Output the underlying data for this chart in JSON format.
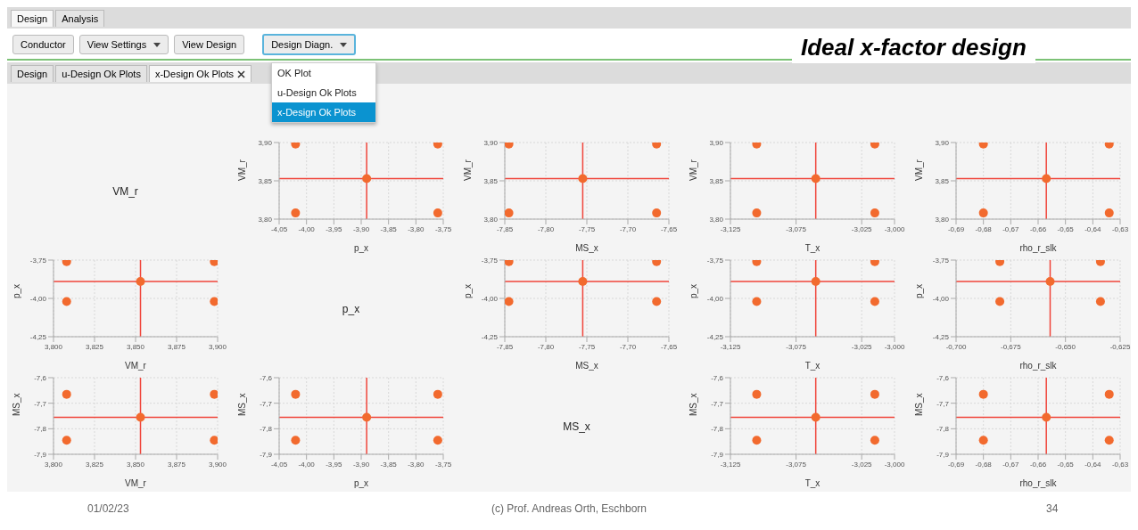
{
  "chart_data": [
    {
      "type": "other",
      "annotations": [
        "Design",
        "Analysis",
        "Conductor",
        "View Settings",
        "View Design",
        "Design Diagn.",
        "Design",
        "u-Design Ok Plots",
        "x-Design Ok Plots",
        "OK Plot",
        "u-Design Ok Plots",
        "x-Design Ok Plots",
        "Ideal x-factor design",
        "VM_r",
        "p_x",
        "MS_x",
        "01/02/23",
        "(c) Prof. Andreas Orth, Eschborn",
        "34"
      ]
    },
    {
      "type": "scatter",
      "xlabel": "p_x",
      "ylabel": "VM_r",
      "color": "#f26a2e",
      "marker": "circle",
      "grid": true,
      "x": [
        -4.02,
        -4.02,
        -3.76,
        -3.76,
        -3.89
      ],
      "values": [
        3.808,
        3.898,
        3.808,
        3.898,
        3.853
      ],
      "xlim": [
        -4.05,
        -3.75
      ],
      "xticks": [
        {
          "value": -4.05,
          "label": "-4,05"
        },
        {
          "value": -4.0,
          "label": "-4,00"
        },
        {
          "value": -3.95,
          "label": "-3,95"
        },
        {
          "value": -3.9,
          "label": "-3,90"
        },
        {
          "value": -3.85,
          "label": "-3,85"
        },
        {
          "value": -3.8,
          "label": "-3,80"
        },
        {
          "value": -3.75,
          "label": "-3,75"
        }
      ],
      "ylim": [
        3.8,
        3.9
      ],
      "yticks": [
        {
          "value": 3.8,
          "label": "3,80"
        },
        {
          "value": 3.85,
          "label": "3,85"
        },
        {
          "value": 3.9,
          "label": "3,90"
        }
      ],
      "ref_lines": [
        {
          "axis": "x",
          "value": -3.89,
          "color": "#f0443a"
        },
        {
          "axis": "y",
          "value": 3.853,
          "color": "#f0443a"
        }
      ]
    },
    {
      "type": "scatter",
      "xlabel": "MS_x",
      "ylabel": "VM_r",
      "color": "#f26a2e",
      "marker": "circle",
      "grid": true,
      "x": [
        -7.845,
        -7.845,
        -7.665,
        -7.665,
        -7.755
      ],
      "values": [
        3.808,
        3.898,
        3.808,
        3.898,
        3.853
      ],
      "xlim": [
        -7.85,
        -7.65
      ],
      "xticks": [
        {
          "value": -7.85,
          "label": "-7,85"
        },
        {
          "value": -7.8,
          "label": "-7,80"
        },
        {
          "value": -7.75,
          "label": "-7,75"
        },
        {
          "value": -7.7,
          "label": "-7,70"
        },
        {
          "value": -7.65,
          "label": "-7,65"
        }
      ],
      "ylim": [
        3.8,
        3.9
      ],
      "yticks": [
        {
          "value": 3.8,
          "label": "3,80"
        },
        {
          "value": 3.85,
          "label": "3,85"
        },
        {
          "value": 3.9,
          "label": "3,90"
        }
      ],
      "ref_lines": [
        {
          "axis": "x",
          "value": -7.755,
          "color": "#f0443a"
        },
        {
          "axis": "y",
          "value": 3.853,
          "color": "#f0443a"
        }
      ]
    },
    {
      "type": "scatter",
      "xlabel": "T_x",
      "ylabel": "VM_r",
      "color": "#f26a2e",
      "marker": "circle",
      "grid": true,
      "x": [
        -3.105,
        -3.105,
        -3.015,
        -3.015,
        -3.06
      ],
      "values": [
        3.808,
        3.898,
        3.808,
        3.898,
        3.853
      ],
      "xlim": [
        -3.125,
        -3.0
      ],
      "xticks": [
        {
          "value": -3.125,
          "label": "-3,125"
        },
        {
          "value": -3.075,
          "label": "-3,075"
        },
        {
          "value": -3.025,
          "label": "-3,025"
        },
        {
          "value": -3.0,
          "label": "-3,000"
        }
      ],
      "ylim": [
        3.8,
        3.9
      ],
      "yticks": [
        {
          "value": 3.8,
          "label": "3,80"
        },
        {
          "value": 3.85,
          "label": "3,85"
        },
        {
          "value": 3.9,
          "label": "3,90"
        }
      ],
      "ref_lines": [
        {
          "axis": "x",
          "value": -3.06,
          "color": "#f0443a"
        },
        {
          "axis": "y",
          "value": 3.853,
          "color": "#f0443a"
        }
      ]
    },
    {
      "type": "scatter",
      "xlabel": "rho_r_slk",
      "ylabel": "VM_r",
      "color": "#f26a2e",
      "marker": "circle",
      "grid": true,
      "x": [
        -0.68,
        -0.68,
        -0.634,
        -0.634,
        -0.657
      ],
      "values": [
        3.808,
        3.898,
        3.808,
        3.898,
        3.853
      ],
      "xlim": [
        -0.69,
        -0.63
      ],
      "xticks": [
        {
          "value": -0.69,
          "label": "-0,69"
        },
        {
          "value": -0.68,
          "label": "-0,68"
        },
        {
          "value": -0.67,
          "label": "-0,67"
        },
        {
          "value": -0.66,
          "label": "-0,66"
        },
        {
          "value": -0.65,
          "label": "-0,65"
        },
        {
          "value": -0.64,
          "label": "-0,64"
        },
        {
          "value": -0.63,
          "label": "-0,63"
        }
      ],
      "ylim": [
        3.8,
        3.9
      ],
      "yticks": [
        {
          "value": 3.8,
          "label": "3,80"
        },
        {
          "value": 3.85,
          "label": "3,85"
        },
        {
          "value": 3.9,
          "label": "3,90"
        }
      ],
      "ref_lines": [
        {
          "axis": "x",
          "value": -0.657,
          "color": "#f0443a"
        },
        {
          "axis": "y",
          "value": 3.853,
          "color": "#f0443a"
        }
      ]
    },
    {
      "type": "scatter",
      "xlabel": "VM_r",
      "ylabel": "p_x",
      "color": "#f26a2e",
      "marker": "circle",
      "grid": true,
      "x": [
        3.808,
        3.808,
        3.898,
        3.898,
        3.853
      ],
      "values": [
        -4.02,
        -3.76,
        -4.02,
        -3.76,
        -3.89
      ],
      "xlim": [
        3.8,
        3.9
      ],
      "xticks": [
        {
          "value": 3.8,
          "label": "3,800"
        },
        {
          "value": 3.825,
          "label": "3,825"
        },
        {
          "value": 3.85,
          "label": "3,850"
        },
        {
          "value": 3.875,
          "label": "3,875"
        },
        {
          "value": 3.9,
          "label": "3,900"
        }
      ],
      "ylim": [
        -4.25,
        -3.75
      ],
      "yticks": [
        {
          "value": -4.25,
          "label": "-4,25"
        },
        {
          "value": -4.0,
          "label": "-4,00"
        },
        {
          "value": -3.75,
          "label": "-3,75"
        }
      ],
      "ref_lines": [
        {
          "axis": "x",
          "value": 3.853,
          "color": "#f0443a"
        },
        {
          "axis": "y",
          "value": -3.89,
          "color": "#f0443a"
        }
      ]
    },
    {
      "type": "scatter",
      "xlabel": "MS_x",
      "ylabel": "p_x",
      "color": "#f26a2e",
      "marker": "circle",
      "grid": true,
      "x": [
        -7.845,
        -7.845,
        -7.665,
        -7.665,
        -7.755
      ],
      "values": [
        -4.02,
        -3.76,
        -4.02,
        -3.76,
        -3.89
      ],
      "xlim": [
        -7.85,
        -7.65
      ],
      "xticks": [
        {
          "value": -7.85,
          "label": "-7,85"
        },
        {
          "value": -7.8,
          "label": "-7,80"
        },
        {
          "value": -7.75,
          "label": "-7,75"
        },
        {
          "value": -7.7,
          "label": "-7,70"
        },
        {
          "value": -7.65,
          "label": "-7,65"
        }
      ],
      "ylim": [
        -4.25,
        -3.75
      ],
      "yticks": [
        {
          "value": -4.25,
          "label": "-4,25"
        },
        {
          "value": -4.0,
          "label": "-4,00"
        },
        {
          "value": -3.75,
          "label": "-3,75"
        }
      ],
      "ref_lines": [
        {
          "axis": "x",
          "value": -7.755,
          "color": "#f0443a"
        },
        {
          "axis": "y",
          "value": -3.89,
          "color": "#f0443a"
        }
      ]
    },
    {
      "type": "scatter",
      "xlabel": "T_x",
      "ylabel": "p_x",
      "color": "#f26a2e",
      "marker": "circle",
      "grid": true,
      "x": [
        -3.105,
        -3.105,
        -3.015,
        -3.015,
        -3.06
      ],
      "values": [
        -4.02,
        -3.76,
        -4.02,
        -3.76,
        -3.89
      ],
      "xlim": [
        -3.125,
        -3.0
      ],
      "xticks": [
        {
          "value": -3.125,
          "label": "-3,125"
        },
        {
          "value": -3.075,
          "label": "-3,075"
        },
        {
          "value": -3.025,
          "label": "-3,025"
        },
        {
          "value": -3.0,
          "label": "-3,000"
        }
      ],
      "ylim": [
        -4.25,
        -3.75
      ],
      "yticks": [
        {
          "value": -4.25,
          "label": "-4,25"
        },
        {
          "value": -4.0,
          "label": "-4,00"
        },
        {
          "value": -3.75,
          "label": "-3,75"
        }
      ],
      "ref_lines": [
        {
          "axis": "x",
          "value": -3.06,
          "color": "#f0443a"
        },
        {
          "axis": "y",
          "value": -3.89,
          "color": "#f0443a"
        }
      ]
    },
    {
      "type": "scatter",
      "xlabel": "rho_r_slk",
      "ylabel": "p_x",
      "color": "#f26a2e",
      "marker": "circle",
      "grid": true,
      "x": [
        -0.68,
        -0.68,
        -0.634,
        -0.634,
        -0.657
      ],
      "values": [
        -4.02,
        -3.76,
        -4.02,
        -3.76,
        -3.89
      ],
      "xlim": [
        -0.7,
        -0.625
      ],
      "xticks": [
        {
          "value": -0.7,
          "label": "-0,700"
        },
        {
          "value": -0.675,
          "label": "-0,675"
        },
        {
          "value": -0.65,
          "label": "-0,650"
        },
        {
          "value": -0.625,
          "label": "-0,625"
        }
      ],
      "ylim": [
        -4.25,
        -3.75
      ],
      "yticks": [
        {
          "value": -4.25,
          "label": "-4,25"
        },
        {
          "value": -4.0,
          "label": "-4,00"
        },
        {
          "value": -3.75,
          "label": "-3,75"
        }
      ],
      "ref_lines": [
        {
          "axis": "x",
          "value": -0.657,
          "color": "#f0443a"
        },
        {
          "axis": "y",
          "value": -3.89,
          "color": "#f0443a"
        }
      ]
    },
    {
      "type": "scatter",
      "xlabel": "VM_r",
      "ylabel": "MS_x",
      "color": "#f26a2e",
      "marker": "circle",
      "grid": true,
      "x": [
        3.808,
        3.808,
        3.898,
        3.898,
        3.853
      ],
      "values": [
        -7.845,
        -7.665,
        -7.845,
        -7.665,
        -7.755
      ],
      "xlim": [
        3.8,
        3.9
      ],
      "xticks": [
        {
          "value": 3.8,
          "label": "3,800"
        },
        {
          "value": 3.825,
          "label": "3,825"
        },
        {
          "value": 3.85,
          "label": "3,850"
        },
        {
          "value": 3.875,
          "label": "3,875"
        },
        {
          "value": 3.9,
          "label": "3,900"
        }
      ],
      "ylim": [
        -7.9,
        -7.6
      ],
      "yticks": [
        {
          "value": -7.9,
          "label": "-7,9"
        },
        {
          "value": -7.8,
          "label": "-7,8"
        },
        {
          "value": -7.7,
          "label": "-7,7"
        },
        {
          "value": -7.6,
          "label": "-7,6"
        }
      ],
      "ref_lines": [
        {
          "axis": "x",
          "value": 3.853,
          "color": "#f0443a"
        },
        {
          "axis": "y",
          "value": -7.755,
          "color": "#f0443a"
        }
      ]
    },
    {
      "type": "scatter",
      "xlabel": "p_x",
      "ylabel": "MS_x",
      "color": "#f26a2e",
      "marker": "circle",
      "grid": true,
      "x": [
        -4.02,
        -4.02,
        -3.76,
        -3.76,
        -3.89
      ],
      "values": [
        -7.845,
        -7.665,
        -7.845,
        -7.665,
        -7.755
      ],
      "xlim": [
        -4.05,
        -3.75
      ],
      "xticks": [
        {
          "value": -4.05,
          "label": "-4,05"
        },
        {
          "value": -4.0,
          "label": "-4,00"
        },
        {
          "value": -3.95,
          "label": "-3,95"
        },
        {
          "value": -3.9,
          "label": "-3,90"
        },
        {
          "value": -3.85,
          "label": "-3,85"
        },
        {
          "value": -3.8,
          "label": "-3,80"
        },
        {
          "value": -3.75,
          "label": "-3,75"
        }
      ],
      "ylim": [
        -7.9,
        -7.6
      ],
      "yticks": [
        {
          "value": -7.9,
          "label": "-7,9"
        },
        {
          "value": -7.8,
          "label": "-7,8"
        },
        {
          "value": -7.7,
          "label": "-7,7"
        },
        {
          "value": -7.6,
          "label": "-7,6"
        }
      ],
      "ref_lines": [
        {
          "axis": "x",
          "value": -3.89,
          "color": "#f0443a"
        },
        {
          "axis": "y",
          "value": -7.755,
          "color": "#f0443a"
        }
      ]
    },
    {
      "type": "scatter",
      "xlabel": "T_x",
      "ylabel": "MS_x",
      "color": "#f26a2e",
      "marker": "circle",
      "grid": true,
      "x": [
        -3.105,
        -3.105,
        -3.015,
        -3.015,
        -3.06
      ],
      "values": [
        -7.845,
        -7.665,
        -7.845,
        -7.665,
        -7.755
      ],
      "xlim": [
        -3.125,
        -3.0
      ],
      "xticks": [
        {
          "value": -3.125,
          "label": "-3,125"
        },
        {
          "value": -3.075,
          "label": "-3,075"
        },
        {
          "value": -3.025,
          "label": "-3,025"
        },
        {
          "value": -3.0,
          "label": "-3,000"
        }
      ],
      "ylim": [
        -7.9,
        -7.6
      ],
      "yticks": [
        {
          "value": -7.9,
          "label": "-7,9"
        },
        {
          "value": -7.8,
          "label": "-7,8"
        },
        {
          "value": -7.7,
          "label": "-7,7"
        },
        {
          "value": -7.6,
          "label": "-7,6"
        }
      ],
      "ref_lines": [
        {
          "axis": "x",
          "value": -3.06,
          "color": "#f0443a"
        },
        {
          "axis": "y",
          "value": -7.755,
          "color": "#f0443a"
        }
      ]
    },
    {
      "type": "scatter",
      "xlabel": "rho_r_slk",
      "ylabel": "MS_x",
      "color": "#f26a2e",
      "marker": "circle",
      "grid": true,
      "x": [
        -0.68,
        -0.68,
        -0.634,
        -0.634,
        -0.657
      ],
      "values": [
        -7.845,
        -7.665,
        -7.845,
        -7.665,
        -7.755
      ],
      "xlim": [
        -0.69,
        -0.63
      ],
      "xticks": [
        {
          "value": -0.69,
          "label": "-0,69"
        },
        {
          "value": -0.68,
          "label": "-0,68"
        },
        {
          "value": -0.67,
          "label": "-0,67"
        },
        {
          "value": -0.66,
          "label": "-0,66"
        },
        {
          "value": -0.65,
          "label": "-0,65"
        },
        {
          "value": -0.64,
          "label": "-0,64"
        },
        {
          "value": -0.63,
          "label": "-0,63"
        }
      ],
      "ylim": [
        -7.9,
        -7.6
      ],
      "yticks": [
        {
          "value": -7.9,
          "label": "-7,9"
        },
        {
          "value": -7.8,
          "label": "-7,8"
        },
        {
          "value": -7.7,
          "label": "-7,7"
        },
        {
          "value": -7.6,
          "label": "-7,6"
        }
      ],
      "ref_lines": [
        {
          "axis": "x",
          "value": -0.657,
          "color": "#f0443a"
        },
        {
          "axis": "y",
          "value": -7.755,
          "color": "#f0443a"
        }
      ]
    }
  ]
}
